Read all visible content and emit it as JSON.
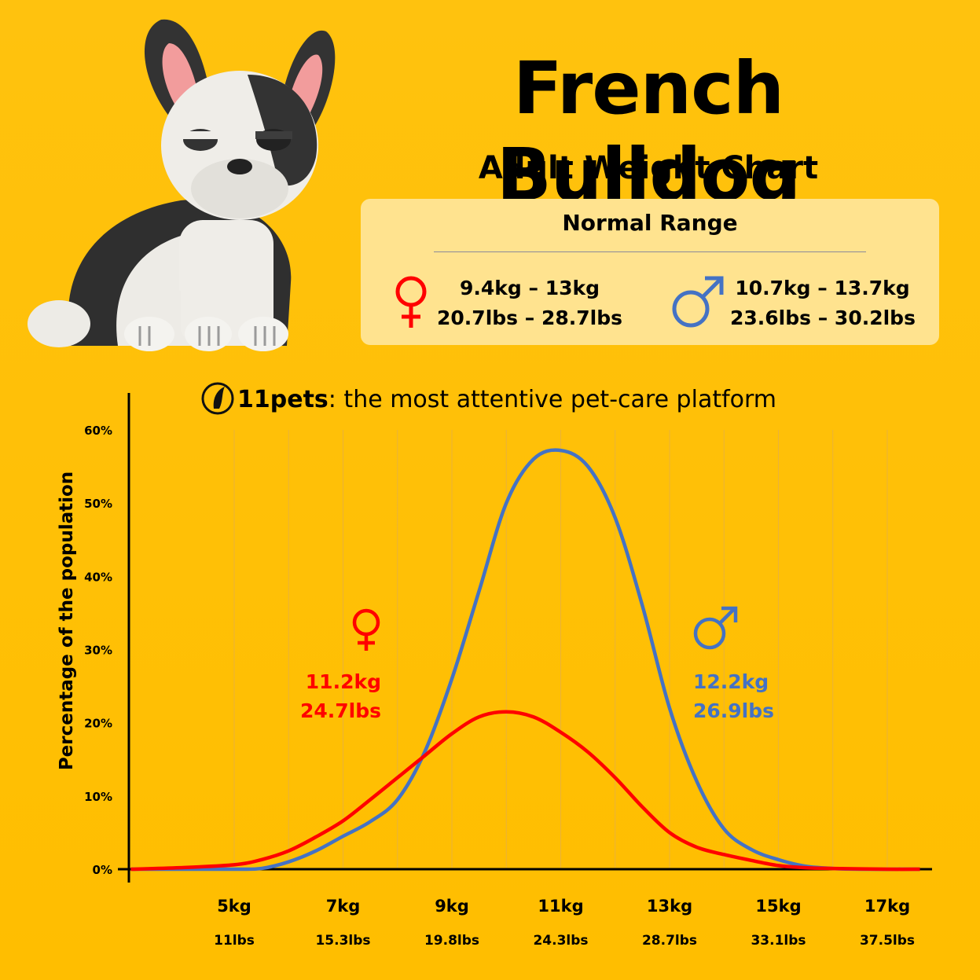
{
  "header": {
    "title": "French Bulldog",
    "subtitle": "Adult Weight Chart"
  },
  "normal_range": {
    "title": "Normal Range",
    "female": {
      "kg": "9.4kg – 13kg",
      "lbs": "20.7lbs – 28.7lbs",
      "icon": "female-symbol-icon",
      "color": "#FF0000"
    },
    "male": {
      "kg": "10.7kg – 13.7kg",
      "lbs": "23.6lbs – 30.2lbs",
      "icon": "male-symbol-icon",
      "color": "#4472C4"
    }
  },
  "brand": {
    "name": "11pets",
    "tagline": ": the most attentive pet-care platform",
    "icon": "11pets-logo-icon"
  },
  "illustration": {
    "icon": "french-bulldog-illustration"
  },
  "chart_data": {
    "type": "line",
    "ylabel": "Percentage of the population",
    "ylim": [
      0,
      60
    ],
    "y_ticks": [
      "0%",
      "10%",
      "20%",
      "30%",
      "40%",
      "50%",
      "60%"
    ],
    "x_ticks": [
      {
        "kg": "5kg",
        "lbs": "11lbs",
        "value": 5
      },
      {
        "kg": "7kg",
        "lbs": "15.3lbs",
        "value": 7
      },
      {
        "kg": "9kg",
        "lbs": "19.8lbs",
        "value": 9
      },
      {
        "kg": "11kg",
        "lbs": "24.3lbs",
        "value": 11
      },
      {
        "kg": "13kg",
        "lbs": "28.7lbs",
        "value": 13
      },
      {
        "kg": "15kg",
        "lbs": "33.1lbs",
        "value": 15
      },
      {
        "kg": "17kg",
        "lbs": "37.5lbs",
        "value": 17
      }
    ],
    "xlim": [
      3.1,
      17.7
    ],
    "grid": "vertical",
    "series": [
      {
        "name": "female",
        "color": "#FF0000",
        "label_kg": "11.2kg",
        "label_lbs": "24.7lbs",
        "points": [
          [
            3.1,
            0
          ],
          [
            4,
            0.2
          ],
          [
            5,
            0.6
          ],
          [
            5.5,
            1.3
          ],
          [
            6,
            2.5
          ],
          [
            6.5,
            4.4
          ],
          [
            7,
            6.6
          ],
          [
            7.5,
            9.5
          ],
          [
            8,
            12.5
          ],
          [
            8.5,
            15.5
          ],
          [
            9,
            18.5
          ],
          [
            9.5,
            20.8
          ],
          [
            10,
            21.5
          ],
          [
            10.5,
            20.8
          ],
          [
            11,
            18.7
          ],
          [
            11.5,
            16
          ],
          [
            12,
            12.5
          ],
          [
            12.5,
            8.5
          ],
          [
            13,
            5
          ],
          [
            13.5,
            3
          ],
          [
            14,
            2
          ],
          [
            14.5,
            1.2
          ],
          [
            15,
            0.5
          ],
          [
            15.5,
            0.2
          ],
          [
            16,
            0.1
          ],
          [
            17,
            0
          ],
          [
            17.6,
            0
          ]
        ]
      },
      {
        "name": "male",
        "color": "#4472C4",
        "label_kg": "12.2kg",
        "label_lbs": "26.9lbs",
        "points": [
          [
            3.1,
            0
          ],
          [
            4,
            0
          ],
          [
            5,
            0
          ],
          [
            5.5,
            0.1
          ],
          [
            6,
            1
          ],
          [
            6.5,
            2.5
          ],
          [
            7,
            4.5
          ],
          [
            7.5,
            6.5
          ],
          [
            8,
            9.5
          ],
          [
            8.5,
            16
          ],
          [
            9,
            26
          ],
          [
            9.5,
            38
          ],
          [
            10,
            50
          ],
          [
            10.5,
            56
          ],
          [
            11,
            57.2
          ],
          [
            11.5,
            55
          ],
          [
            12,
            48
          ],
          [
            12.5,
            36
          ],
          [
            13,
            22
          ],
          [
            13.5,
            12
          ],
          [
            14,
            5.5
          ],
          [
            14.5,
            2.7
          ],
          [
            15,
            1.3
          ],
          [
            15.5,
            0.4
          ],
          [
            16,
            0.1
          ],
          [
            16.5,
            0
          ],
          [
            17.6,
            0
          ]
        ]
      }
    ]
  }
}
